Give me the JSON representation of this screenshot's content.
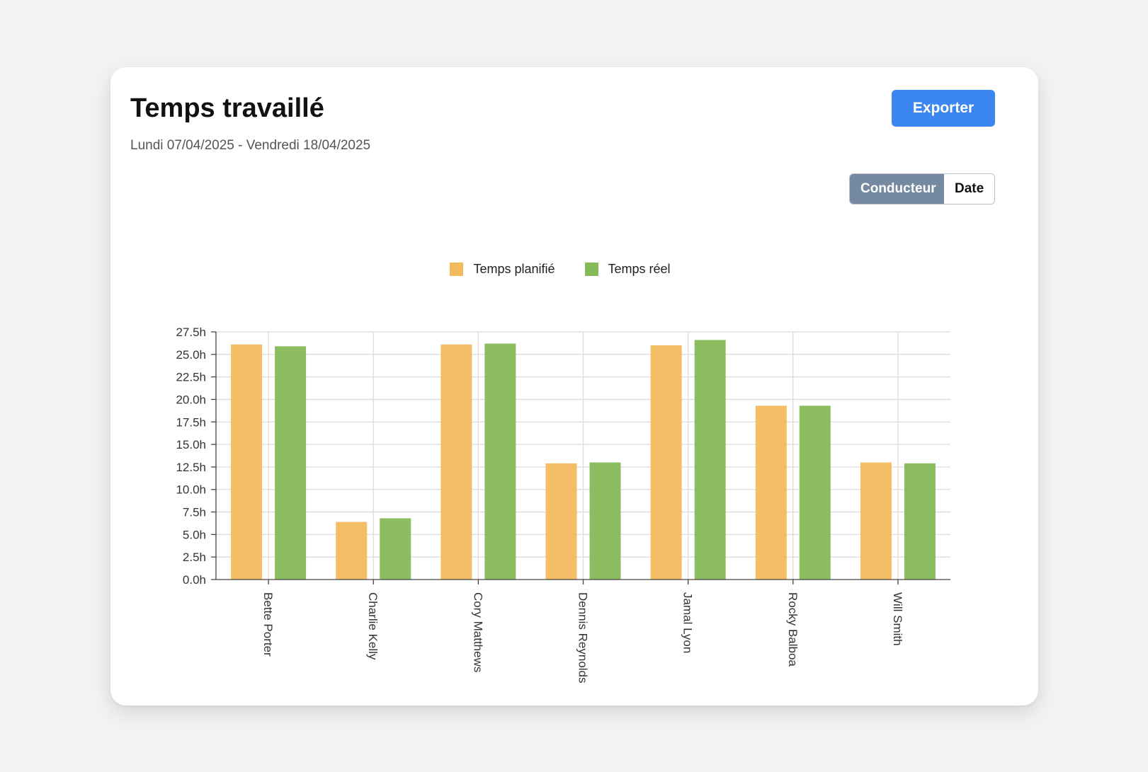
{
  "header": {
    "title": "Temps travaillé",
    "subtitle": "Lundi 07/04/2025 - Vendredi 18/04/2025",
    "export_label": "Exporter"
  },
  "view_toggle": {
    "options": [
      "Conducteur",
      "Date"
    ],
    "selected": "Conducteur"
  },
  "colors": {
    "planned": "#f2bb5d",
    "actual": "#86b957",
    "accent": "#3b86f0",
    "toggle_active": "#7589a1"
  },
  "chart_data": {
    "type": "bar",
    "categories": [
      "Bette Porter",
      "Charlie Kelly",
      "Cory Matthews",
      "Dennis Reynolds",
      "Jamal Lyon",
      "Rocky Balboa",
      "Will Smith"
    ],
    "series": [
      {
        "name": "Temps planifié",
        "values": [
          26.1,
          6.4,
          26.1,
          12.9,
          26.0,
          19.3,
          13.0
        ]
      },
      {
        "name": "Temps réel",
        "values": [
          25.9,
          6.8,
          26.2,
          13.0,
          26.6,
          19.3,
          12.9
        ]
      }
    ],
    "y_ticks": [
      "0.0h",
      "2.5h",
      "5.0h",
      "7.5h",
      "10.0h",
      "12.5h",
      "15.0h",
      "17.5h",
      "20.0h",
      "22.5h",
      "25.0h",
      "27.5h"
    ],
    "ylim": [
      0,
      27.5
    ],
    "grid": true,
    "legend_position": "top-center"
  }
}
